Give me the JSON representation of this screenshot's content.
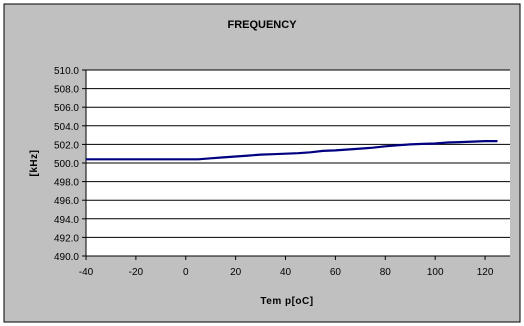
{
  "chart_data": {
    "type": "line",
    "title": "FREQUENCY",
    "xlabel": "Tem p[oC]",
    "ylabel": "[kHz]",
    "xlim": [
      -40,
      130
    ],
    "ylim": [
      490.0,
      510.0
    ],
    "x_ticks": [
      -40,
      -20,
      0,
      20,
      40,
      60,
      80,
      100,
      120
    ],
    "x_tick_labels": [
      "-40",
      "-20",
      "0",
      "20",
      "40",
      "60",
      "80",
      "100",
      "120"
    ],
    "y_ticks": [
      510.0,
      508.0,
      506.0,
      504.0,
      502.0,
      500.0,
      498.0,
      496.0,
      494.0,
      492.0,
      490.0
    ],
    "y_tick_labels": [
      "510.0",
      "508.0",
      "506.0",
      "504.0",
      "502.0",
      "500.0",
      "498.0",
      "496.0",
      "494.0",
      "492.0",
      "490.0"
    ],
    "grid": "horizontal",
    "legend": "none",
    "series": [
      {
        "color": "#000080",
        "x": [
          -40,
          -30,
          -20,
          -10,
          0,
          5,
          10,
          15,
          20,
          25,
          30,
          35,
          40,
          45,
          50,
          55,
          60,
          65,
          70,
          75,
          80,
          85,
          90,
          95,
          100,
          105,
          110,
          115,
          120,
          125
        ],
        "y": [
          500.4,
          500.4,
          500.4,
          500.4,
          500.4,
          500.4,
          500.5,
          500.6,
          500.7,
          500.8,
          500.9,
          500.95,
          501.0,
          501.05,
          501.15,
          501.3,
          501.35,
          501.45,
          501.55,
          501.65,
          501.8,
          501.9,
          502.0,
          502.05,
          502.1,
          502.2,
          502.25,
          502.3,
          502.35,
          502.35
        ]
      }
    ],
    "colors": {
      "chart_border": "#000000",
      "plot_background": "#c0c0c0",
      "page_background": "#ffffff",
      "gridline": "#000000",
      "line": "#000080"
    }
  }
}
